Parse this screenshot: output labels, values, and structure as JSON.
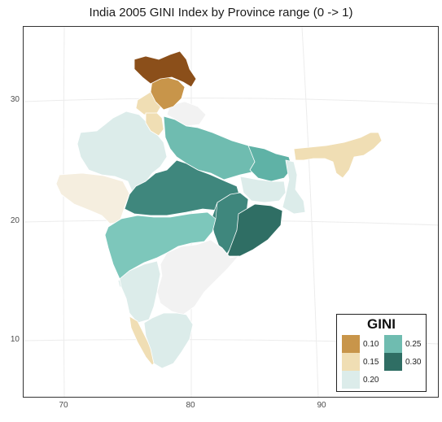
{
  "title": "India 2005 GINI Index by Province range (0 -> 1)",
  "axes": {
    "x_ticks": [
      "70",
      "80",
      "90"
    ],
    "y_ticks": [
      "30",
      "20",
      "10"
    ]
  },
  "legend": {
    "title": "GINI",
    "items": [
      {
        "label": "0.10",
        "color": "#c8954a"
      },
      {
        "label": "0.15",
        "color": "#f0deb4"
      },
      {
        "label": "0.20",
        "color": "#dcecea"
      },
      {
        "label": "0.25",
        "color": "#6fbcb0"
      },
      {
        "label": "0.30",
        "color": "#2f6e64"
      }
    ]
  },
  "regions": [
    {
      "name": "jammu-kashmir",
      "color": "#8b4f1a"
    },
    {
      "name": "himachal-pradesh",
      "color": "#c8954a"
    },
    {
      "name": "punjab",
      "color": "#f0deb4"
    },
    {
      "name": "haryana",
      "color": "#f0deb4"
    },
    {
      "name": "uttarakhand",
      "color": "#f2f2f2"
    },
    {
      "name": "rajasthan",
      "color": "#dcecea"
    },
    {
      "name": "gujarat",
      "color": "#f5eedf"
    },
    {
      "name": "uttar-pradesh",
      "color": "#6fbcb0"
    },
    {
      "name": "madhya-pradesh",
      "color": "#3f877d"
    },
    {
      "name": "bihar",
      "color": "#5fb2a6"
    },
    {
      "name": "jharkhand",
      "color": "#dcecea"
    },
    {
      "name": "west-bengal",
      "color": "#dcecea"
    },
    {
      "name": "northeast",
      "color": "#f0deb4"
    },
    {
      "name": "chhattisgarh",
      "color": "#3f877d"
    },
    {
      "name": "odisha",
      "color": "#2f6e64"
    },
    {
      "name": "maharashtra",
      "color": "#7dc7bb"
    },
    {
      "name": "andhra-pradesh",
      "color": "#f2f2f2"
    },
    {
      "name": "karnataka",
      "color": "#dcecea"
    },
    {
      "name": "goa",
      "color": "#dcecea"
    },
    {
      "name": "kerala",
      "color": "#f0deb4"
    },
    {
      "name": "tamil-nadu",
      "color": "#dcecea"
    }
  ]
}
